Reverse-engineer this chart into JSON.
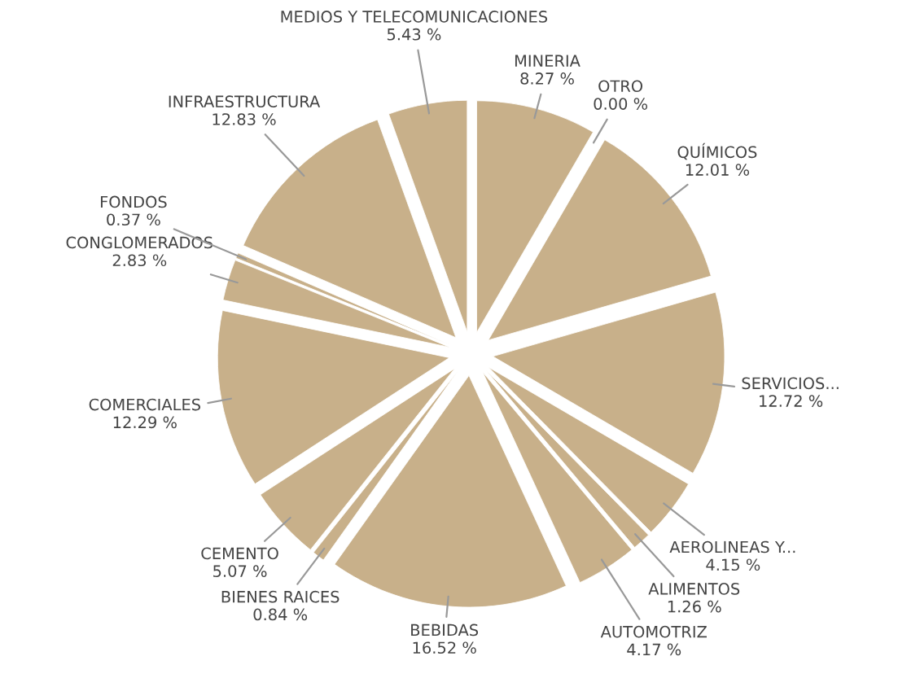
{
  "chart_data": {
    "type": "pie",
    "categories": [
      "MINERIA",
      "OTRO",
      "QUÍMICOS",
      "SERVICIOS...",
      "AEROLINEAS Y...",
      "ALIMENTOS",
      "AUTOMOTRIZ",
      "BEBIDAS",
      "BIENES RAICES",
      "CEMENTO",
      "COMERCIALES",
      "CONGLOMERADOS",
      "FONDOS",
      "INFRAESTRUCTURA",
      "MEDIOS Y TELECOMUNICACIONES"
    ],
    "values": [
      8.27,
      0.0,
      12.01,
      12.72,
      4.15,
      1.26,
      4.17,
      16.52,
      0.84,
      5.07,
      12.29,
      2.83,
      0.37,
      12.83,
      5.43
    ],
    "value_labels": [
      "8.27 %",
      "0.00 %",
      "12.01 %",
      "12.72 %",
      "4.15 %",
      "1.26 %",
      "4.17 %",
      "16.52 %",
      "0.84 %",
      "5.07 %",
      "12.29 %",
      "2.83 %",
      "0.37 %",
      "12.83 %",
      "5.43 %"
    ],
    "colors": [
      "#c8b08a",
      "#c8b08a",
      "#c8b08a",
      "#c8b08a",
      "#c8b08a",
      "#c8b08a",
      "#c8b08a",
      "#c8b08a",
      "#c8b08a",
      "#c8b08a",
      "#c8b08a",
      "#c8b08a",
      "#c8b08a",
      "#c8b08a",
      "#c8b08a"
    ]
  }
}
